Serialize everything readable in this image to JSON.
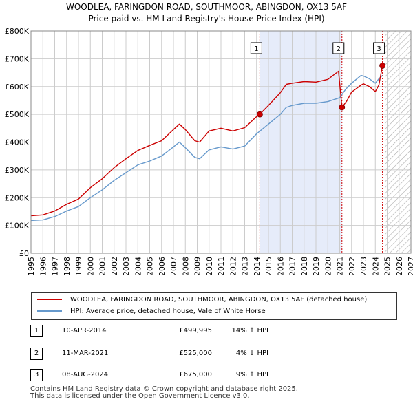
{
  "header": {
    "line1": "WOODLEA, FARINGDON ROAD, SOUTHMOOR, ABINGDON, OX13 5AF",
    "line2": "Price paid vs. HM Land Registry's House Price Index (HPI)"
  },
  "colors": {
    "property": "#cc0000",
    "hpi": "#6699cc",
    "highlight": "#e6ecfa",
    "grid": "#cccccc"
  },
  "chart_data": {
    "type": "line",
    "title": "WOODLEA, FARINGDON ROAD, SOUTHMOOR, ABINGDON, OX13 5AF - Price paid vs. HM Land Registry's House Price Index (HPI)",
    "xlabel": "",
    "ylabel": "",
    "xlim": [
      1995,
      2027
    ],
    "ylim": [
      0,
      800000
    ],
    "grid": true,
    "y_ticks": [
      0,
      100000,
      200000,
      300000,
      400000,
      500000,
      600000,
      700000,
      800000
    ],
    "y_tick_labels": [
      "£0",
      "£100K",
      "£200K",
      "£300K",
      "£400K",
      "£500K",
      "£600K",
      "£700K",
      "£800K"
    ],
    "x_ticks": [
      1995,
      1996,
      1997,
      1998,
      1999,
      2000,
      2001,
      2002,
      2003,
      2004,
      2005,
      2006,
      2007,
      2008,
      2009,
      2010,
      2011,
      2012,
      2013,
      2014,
      2015,
      2016,
      2017,
      2018,
      2019,
      2020,
      2021,
      2022,
      2023,
      2024,
      2025,
      2026,
      2027
    ],
    "x_tick_labels": [
      "1995",
      "1996",
      "1997",
      "1998",
      "1999",
      "2000",
      "2001",
      "2002",
      "2003",
      "2004",
      "2005",
      "2006",
      "2007",
      "2008",
      "2009",
      "2010",
      "2011",
      "2012",
      "2013",
      "2014",
      "2015",
      "2016",
      "2017",
      "2018",
      "2019",
      "2020",
      "2021",
      "2022",
      "2023",
      "2024",
      "2025",
      "2026",
      "2027"
    ],
    "highlight_range": [
      2014.27,
      2021.19
    ],
    "forecast_start": 2024.85,
    "series": [
      {
        "name": "WOODLEA, FARINGDON ROAD, SOUTHMOOR, ABINGDON, OX13 5AF (detached house)",
        "key": "property",
        "x": [
          1995,
          1996,
          1997,
          1998,
          1999,
          2000,
          2001,
          2002,
          2003,
          2004,
          2005,
          2006,
          2007,
          2007.5,
          2008,
          2008.8,
          2009.2,
          2010,
          2011,
          2012,
          2013,
          2014,
          2014.27,
          2015,
          2016,
          2016.5,
          2017,
          2018,
          2019,
          2020,
          2020.9,
          2021.19,
          2021.6,
          2022,
          2022.8,
          2023,
          2023.5,
          2024,
          2024.3,
          2024.6
        ],
        "values": [
          135000,
          138000,
          152000,
          176000,
          195000,
          236000,
          268000,
          308000,
          340000,
          370000,
          388000,
          405000,
          445000,
          465000,
          445000,
          405000,
          400000,
          440000,
          450000,
          440000,
          452000,
          492000,
          499995,
          532000,
          578000,
          608000,
          612000,
          618000,
          616000,
          626000,
          655000,
          525000,
          548000,
          580000,
          605000,
          610000,
          600000,
          582000,
          605000,
          675000
        ]
      },
      {
        "name": "HPI: Average price, detached house, Vale of White Horse",
        "key": "hpi",
        "x": [
          1995,
          1996,
          1997,
          1998,
          1999,
          2000,
          2001,
          2002,
          2003,
          2004,
          2005,
          2006,
          2007,
          2007.5,
          2008,
          2008.8,
          2009.2,
          2010,
          2011,
          2012,
          2013,
          2014,
          2015,
          2016,
          2016.5,
          2017,
          2018,
          2019,
          2020,
          2021,
          2021.5,
          2022,
          2022.8,
          2023,
          2023.5,
          2024,
          2024.3,
          2024.6
        ],
        "values": [
          118000,
          120000,
          132000,
          152000,
          168000,
          200000,
          228000,
          262000,
          290000,
          318000,
          332000,
          350000,
          383000,
          400000,
          380000,
          345000,
          340000,
          372000,
          383000,
          375000,
          386000,
          430000,
          465000,
          500000,
          525000,
          532000,
          540000,
          540000,
          546000,
          560000,
          590000,
          612000,
          640000,
          638000,
          628000,
          612000,
          628000,
          640000
        ]
      }
    ],
    "sales": [
      {
        "n": "1",
        "x": 2014.27,
        "value": 499995
      },
      {
        "n": "2",
        "x": 2021.19,
        "value": 525000
      },
      {
        "n": "3",
        "x": 2024.6,
        "value": 675000
      }
    ]
  },
  "legend": {
    "property_label": "WOODLEA, FARINGDON ROAD, SOUTHMOOR, ABINGDON, OX13 5AF (detached house)",
    "hpi_label": "HPI: Average price, detached house, Vale of White Horse"
  },
  "transactions": [
    {
      "n": "1",
      "date": "10-APR-2014",
      "price": "£499,995",
      "hpi": "14% ↑ HPI"
    },
    {
      "n": "2",
      "date": "11-MAR-2021",
      "price": "£525,000",
      "hpi": "4% ↓ HPI"
    },
    {
      "n": "3",
      "date": "08-AUG-2024",
      "price": "£675,000",
      "hpi": "9% ↑ HPI"
    }
  ],
  "footer": {
    "line1": "Contains HM Land Registry data © Crown copyright and database right 2025.",
    "line2": "This data is licensed under the Open Government Licence v3.0."
  }
}
